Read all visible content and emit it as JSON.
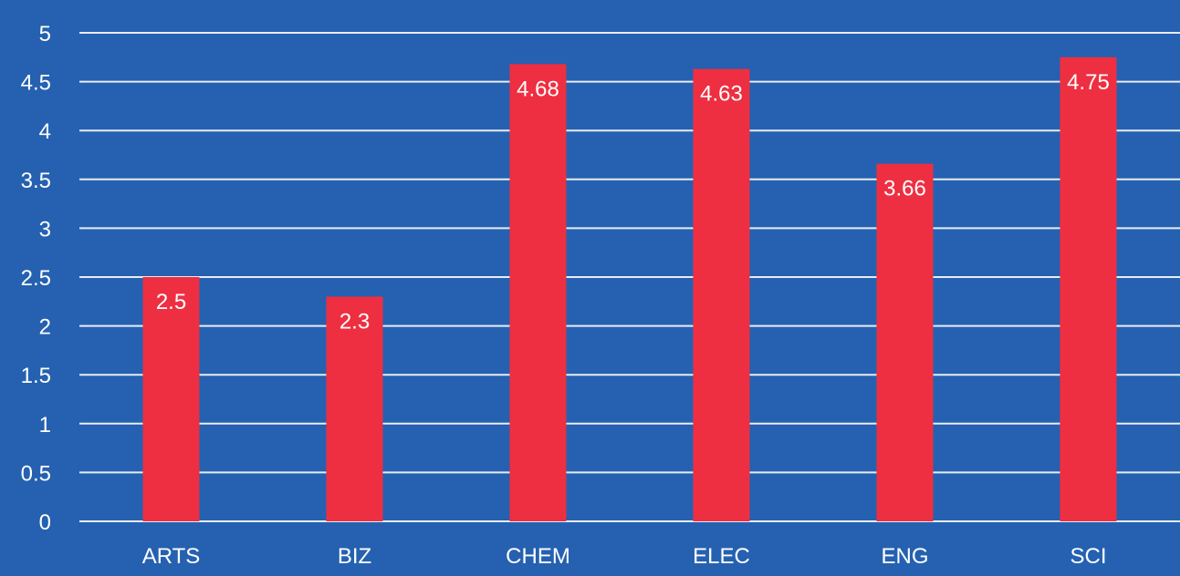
{
  "colors": {
    "background": "#2561b0",
    "bar": "#ee2f41",
    "gridline": "#e8ecf4",
    "text": "#ffffff"
  },
  "chart_data": {
    "type": "bar",
    "title": "",
    "xlabel": "",
    "ylabel": "",
    "categories": [
      "ARTS",
      "BIZ",
      "CHEM",
      "ELEC",
      "ENG",
      "SCI"
    ],
    "values": [
      2.5,
      2.3,
      4.68,
      4.63,
      3.66,
      4.75
    ],
    "value_labels": [
      "2.5",
      "2.3",
      "4.68",
      "4.63",
      "3.66",
      "4.75"
    ],
    "ylim": [
      0,
      5
    ],
    "yticks": [
      "0",
      "0.5",
      "1",
      "1.5",
      "2",
      "2.5",
      "3",
      "3.5",
      "4",
      "4.5",
      "5"
    ],
    "grid": true,
    "legend": "none"
  }
}
